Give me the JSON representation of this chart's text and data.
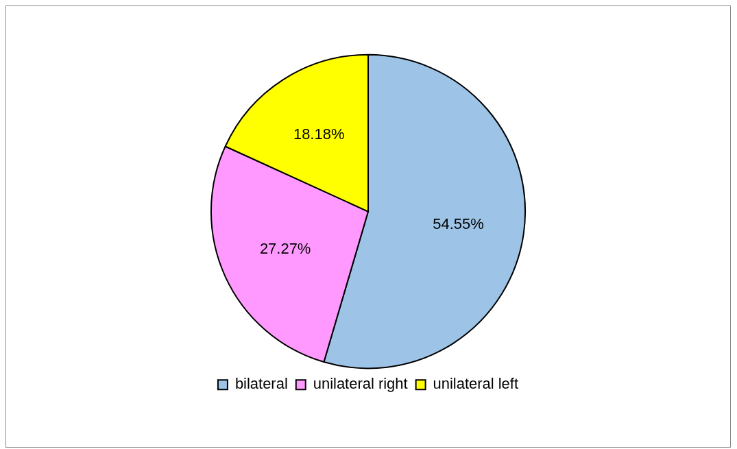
{
  "chart_data": {
    "type": "pie",
    "categories": [
      "bilateral",
      "unilateral right",
      "unilateral left"
    ],
    "values": [
      54.55,
      27.27,
      18.18
    ],
    "colors": [
      "#9dc3e6",
      "#ff99ff",
      "#ffff00"
    ],
    "value_labels": [
      "54.55%",
      "27.27%",
      "18.18%"
    ],
    "legend": "bottom"
  }
}
